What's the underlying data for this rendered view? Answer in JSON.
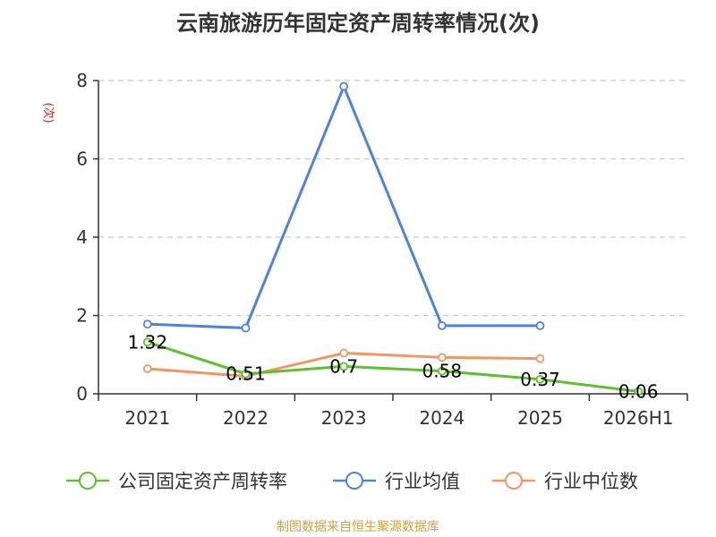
{
  "title": "云南旅游历年固定资产周转率情况(次)",
  "y_unit_label": "(次)",
  "source": "制图数据来自恒生聚源数据库",
  "colors": {
    "company": "#5cc12b",
    "industry_avg": "#4f81e3",
    "industry_median": "#f39563",
    "source_text": "#c9a23a",
    "unit_text": "#e02020"
  },
  "chart_data": {
    "type": "line",
    "categories": [
      "2021",
      "2022",
      "2023",
      "2024",
      "2025",
      "2026H1"
    ],
    "ylim": [
      0,
      8
    ],
    "yticks": [
      0,
      2,
      4,
      6,
      8
    ],
    "grid": true,
    "legend_position": "bottom",
    "series": [
      {
        "name": "公司固定资产周转率",
        "color_key": "company",
        "values": [
          1.32,
          0.51,
          0.7,
          0.58,
          0.37,
          0.06
        ],
        "labels": [
          "1.32",
          "0.51",
          "0.7",
          "0.58",
          "0.37",
          "0.06"
        ]
      },
      {
        "name": "行业均值",
        "color_key": "industry_avg",
        "values": [
          1.78,
          1.68,
          7.85,
          1.74,
          1.74,
          null
        ]
      },
      {
        "name": "行业中位数",
        "color_key": "industry_median",
        "values": [
          0.64,
          0.45,
          1.04,
          0.93,
          0.9,
          null
        ]
      }
    ]
  }
}
